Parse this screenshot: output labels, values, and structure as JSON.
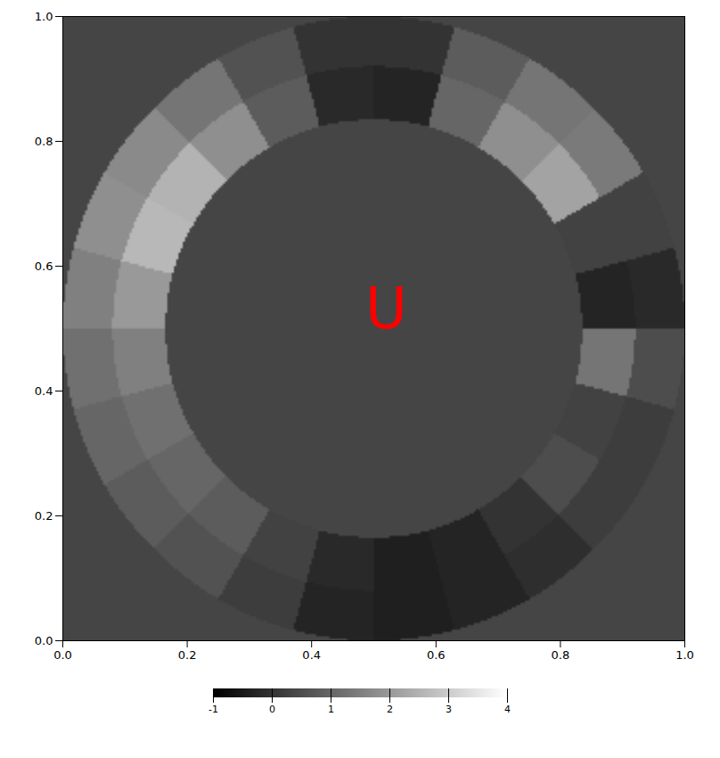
{
  "chart_data": {
    "type": "image",
    "xlim": [
      0,
      1
    ],
    "ylim": [
      0,
      1
    ],
    "xticks": [
      {
        "value": 0,
        "label": "0.0"
      },
      {
        "value": 0.2,
        "label": "0.2"
      },
      {
        "value": 0.4,
        "label": "0.4"
      },
      {
        "value": 0.6,
        "label": "0.6"
      },
      {
        "value": 0.8,
        "label": "0.8"
      },
      {
        "value": 1,
        "label": "1.0"
      }
    ],
    "yticks": [
      {
        "value": 0,
        "label": "0.0"
      },
      {
        "value": 0.2,
        "label": "0.2"
      },
      {
        "value": 0.4,
        "label": "0.4"
      },
      {
        "value": 0.6,
        "label": "0.6"
      },
      {
        "value": 0.8,
        "label": "0.8"
      },
      {
        "value": 1,
        "label": "1.0"
      }
    ],
    "center": [
      0.5,
      0.5
    ],
    "radius_bins": [
      0.335,
      0.42,
      0.5
    ],
    "angle_bins": [
      0,
      15,
      30,
      45,
      60,
      75,
      90,
      105,
      120,
      135,
      150,
      165,
      180,
      195,
      210,
      225,
      240,
      255,
      270,
      285,
      300,
      315,
      330,
      345,
      360
    ],
    "cells": [
      [
        -0.3,
        0.3,
        2.2,
        1.8,
        1.0,
        -0.3,
        -0.2,
        0.8,
        1.8,
        2.5,
        2.6,
        2.0,
        1.5,
        1.2,
        1.0,
        0.8,
        0.3,
        -0.2,
        -0.4,
        -0.3,
        0.0,
        0.5,
        0.3,
        1.3
      ],
      [
        -0.2,
        0.3,
        1.4,
        1.3,
        0.8,
        0.0,
        0.0,
        0.6,
        1.3,
        1.7,
        1.8,
        1.5,
        1.2,
        1.0,
        0.8,
        0.6,
        0.2,
        -0.3,
        -0.4,
        -0.3,
        -0.1,
        0.2,
        0.2,
        0.5
      ]
    ],
    "annotations": [
      {
        "text": "U",
        "x": 0.52,
        "y": 0.53,
        "color": "#ff0000"
      }
    ],
    "colorbar": {
      "range": [
        -1,
        4
      ],
      "ticks": [
        -1,
        0,
        1,
        2,
        3,
        4
      ]
    }
  }
}
